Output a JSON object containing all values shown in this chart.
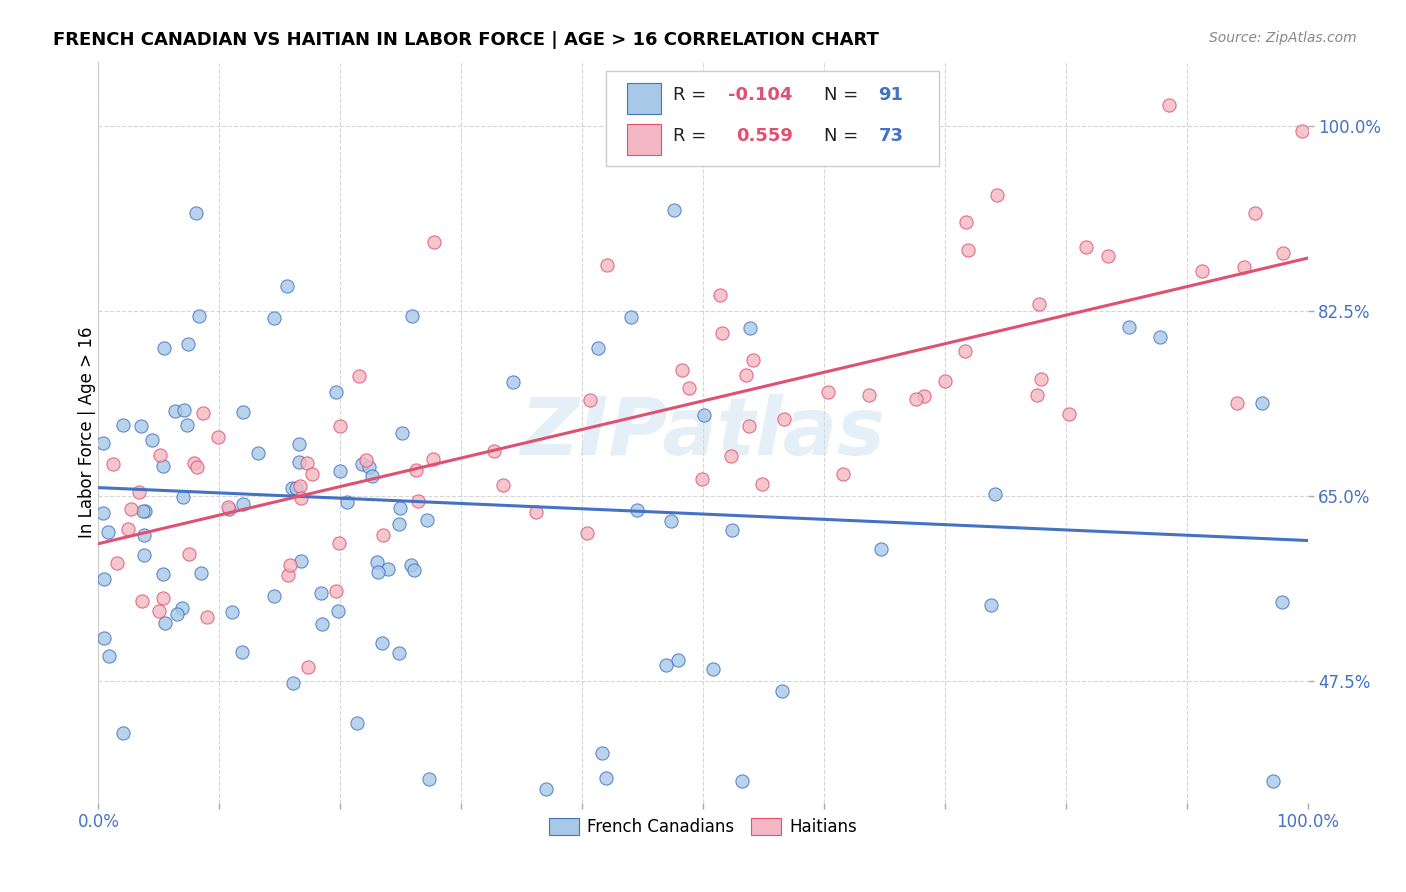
{
  "title": "FRENCH CANADIAN VS HAITIAN IN LABOR FORCE | AGE > 16 CORRELATION CHART",
  "source": "Source: ZipAtlas.com",
  "ylabel": "In Labor Force | Age > 16",
  "ytick_labels": [
    "47.5%",
    "65.0%",
    "82.5%",
    "100.0%"
  ],
  "ytick_values": [
    0.475,
    0.65,
    0.825,
    1.0
  ],
  "xlim": [
    0.0,
    1.0
  ],
  "ylim": [
    0.36,
    1.06
  ],
  "blue_fill": "#a8c8e8",
  "blue_edge": "#4472c4",
  "pink_fill": "#f4b8c4",
  "pink_edge": "#e05070",
  "blue_line": "#4472c4",
  "pink_line": "#e05070",
  "watermark": "ZIPatlas",
  "blue_N": 91,
  "pink_N": 73,
  "blue_line_x": [
    0.0,
    1.0
  ],
  "blue_line_y": [
    0.658,
    0.608
  ],
  "pink_line_x": [
    0.0,
    1.0
  ],
  "pink_line_y": [
    0.605,
    0.875
  ]
}
